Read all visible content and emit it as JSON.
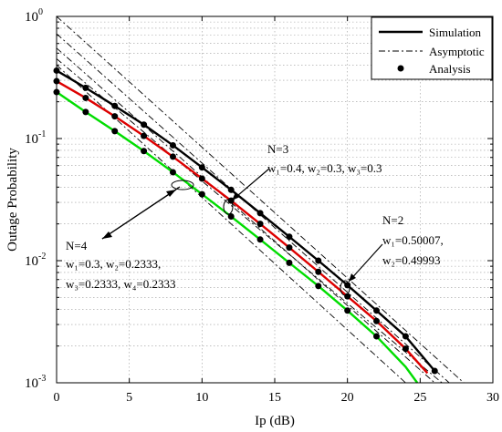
{
  "chart_data": {
    "type": "line",
    "title": "",
    "xlabel": "Ip (dB)",
    "ylabel": "Outage Probability",
    "xlim": [
      0,
      30
    ],
    "ylim": [
      0.001,
      1
    ],
    "yscale": "log",
    "grid": true,
    "legend_placement": "top-right",
    "x_ticks": [
      "0",
      "5",
      "10",
      "15",
      "20",
      "25",
      "30"
    ],
    "y_ticks": [
      {
        "base": "10",
        "exp": "0"
      },
      {
        "base": "10",
        "exp": "-1"
      },
      {
        "base": "10",
        "exp": "-2"
      },
      {
        "base": "10",
        "exp": "-3"
      }
    ],
    "legend": [
      {
        "label": "Simulation",
        "style": "solid"
      },
      {
        "label": "Asymptotic",
        "style": "dashdot"
      },
      {
        "label": "Analysis",
        "style": "marker"
      }
    ],
    "series": [
      {
        "group": "N=2",
        "color": "#000000",
        "simulation": {
          "x": [
            0,
            2,
            4,
            6,
            8,
            10,
            12,
            14,
            16,
            18,
            20,
            22,
            24,
            26
          ],
          "y": [
            0.36,
            0.26,
            0.185,
            0.13,
            0.088,
            0.058,
            0.038,
            0.0245,
            0.0157,
            0.01,
            0.0063,
            0.0039,
            0.0024,
            0.00125
          ]
        },
        "analysis": {
          "x": [
            0,
            2,
            4,
            6,
            8,
            10,
            12,
            14,
            16,
            18,
            20,
            22,
            24,
            26
          ],
          "y": [
            0.36,
            0.26,
            0.185,
            0.13,
            0.088,
            0.058,
            0.038,
            0.0245,
            0.0157,
            0.01,
            0.0063,
            0.0039,
            0.0024,
            0.00125
          ]
        }
      },
      {
        "group": "N=3",
        "color": "#dd0000",
        "simulation": {
          "x": [
            0,
            2,
            4,
            6,
            8,
            10,
            12,
            14,
            16,
            18,
            20,
            22,
            24,
            25.5
          ],
          "y": [
            0.295,
            0.215,
            0.152,
            0.105,
            0.071,
            0.047,
            0.031,
            0.02,
            0.0128,
            0.0081,
            0.0051,
            0.0032,
            0.0019,
            0.0012
          ]
        },
        "analysis": {
          "x": [
            0,
            2,
            4,
            6,
            8,
            10,
            12,
            14,
            16,
            18,
            20,
            22,
            24
          ],
          "y": [
            0.295,
            0.215,
            0.152,
            0.105,
            0.071,
            0.047,
            0.031,
            0.02,
            0.0128,
            0.0081,
            0.0051,
            0.0032,
            0.0019
          ]
        }
      },
      {
        "group": "N=4",
        "color": "#00dd00",
        "simulation": {
          "x": [
            0,
            2,
            4,
            6,
            8,
            10,
            12,
            14,
            16,
            18,
            20,
            22,
            24,
            24.8
          ],
          "y": [
            0.24,
            0.165,
            0.115,
            0.079,
            0.053,
            0.035,
            0.023,
            0.0149,
            0.0096,
            0.0062,
            0.0039,
            0.0024,
            0.00135,
            0.001
          ]
        },
        "analysis": {
          "x": [
            0,
            2,
            4,
            6,
            8,
            10,
            12,
            14,
            16,
            18,
            20,
            22
          ],
          "y": [
            0.24,
            0.165,
            0.115,
            0.079,
            0.053,
            0.035,
            0.023,
            0.0149,
            0.0096,
            0.0062,
            0.0039,
            0.0024
          ]
        }
      }
    ],
    "asymptotic": [
      {
        "x": [
          0,
          28
        ],
        "y": [
          1.0,
          0.001
        ]
      },
      {
        "x": [
          0,
          27
        ],
        "y": [
          0.72,
          0.001
        ]
      },
      {
        "x": [
          0,
          26
        ],
        "y": [
          0.55,
          0.001
        ]
      },
      {
        "x": [
          0,
          24
        ],
        "y": [
          0.4,
          0.001
        ]
      },
      {
        "x": [
          0,
          26.5
        ],
        "y": [
          0.45,
          0.001
        ]
      }
    ],
    "annotations": {
      "n3": {
        "title": "N=3",
        "weights": "w₁=0.4, w₂=0.3, w₃=0.3"
      },
      "n2": {
        "title": "N=2",
        "w1": "w₁=0.50007,",
        "w2": "w₂=0.49993"
      },
      "n4": {
        "title": "N=4",
        "line1": "w₁=0.3, w₂=0.2333,",
        "line2": "w₃=0.2333, w₄=0.2333"
      }
    }
  }
}
